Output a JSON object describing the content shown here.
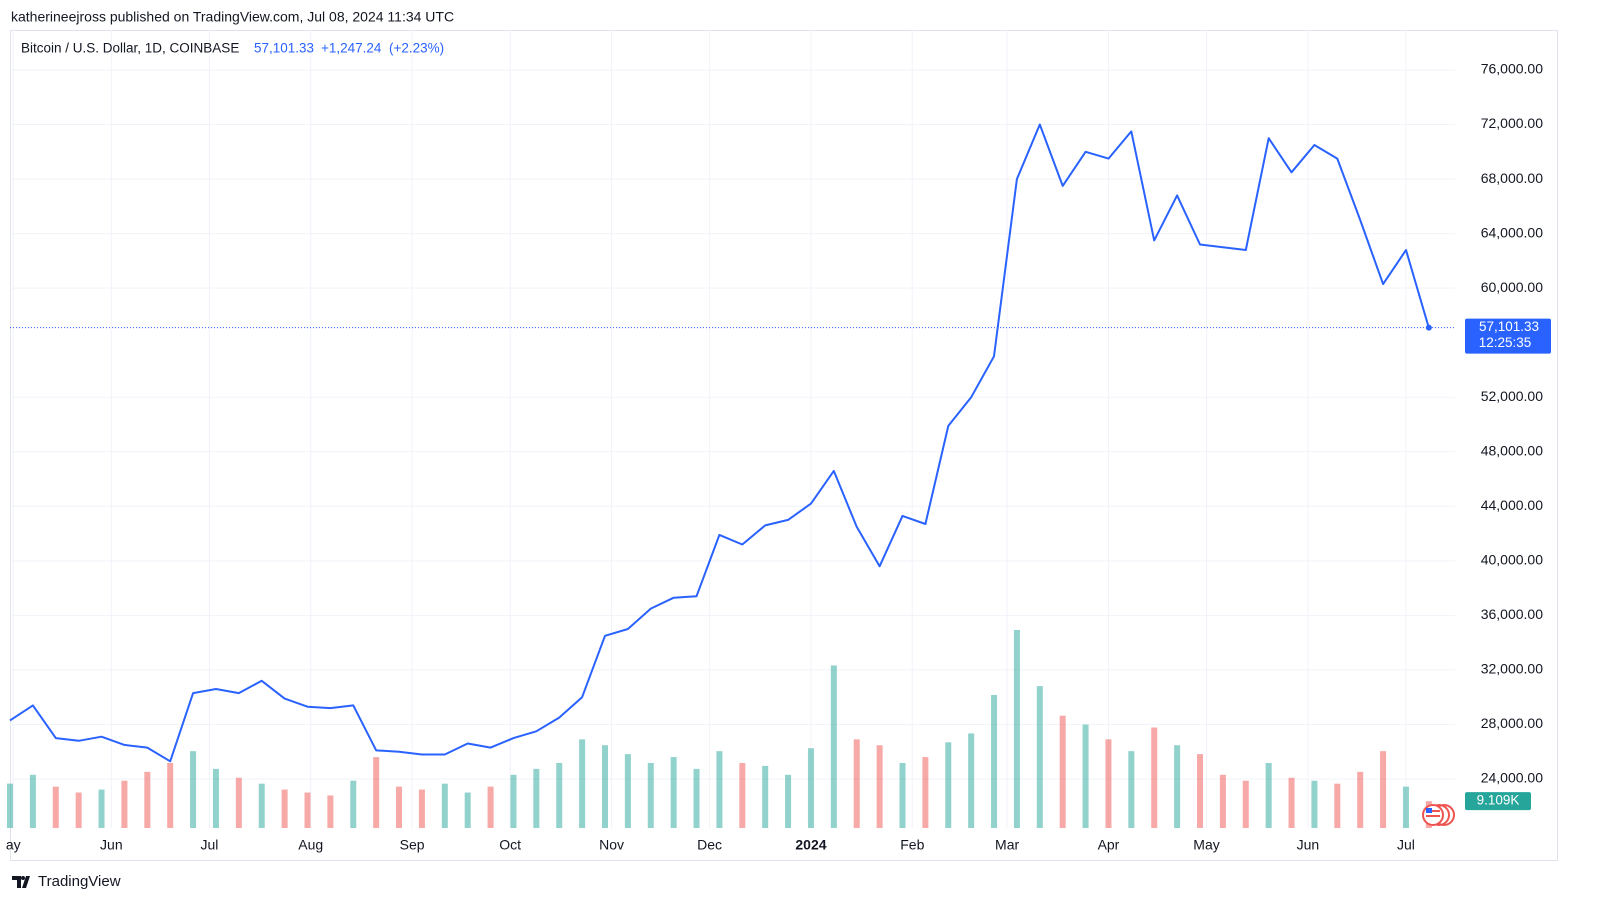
{
  "published": "katherineejross published on TradingView.com, Jul 08, 2024 11:34 UTC",
  "brand": "TradingView",
  "chart_data": {
    "type": "line",
    "title": "Bitcoin / U.S. Dollar, 1D, COINBASE",
    "last_price": {
      "value": 57101.33,
      "label": "57,101.33"
    },
    "change": {
      "value": 1247.24,
      "label": "+1,247.24"
    },
    "change_pct": {
      "value": 2.23,
      "label": "(+2.23%)"
    },
    "countdown": "12:25:35",
    "color": "#2962ff",
    "x": [
      0,
      7,
      14,
      21,
      28,
      35,
      42,
      49,
      56,
      63,
      70,
      77,
      84,
      91,
      98,
      105,
      112,
      119,
      126,
      133,
      140,
      147,
      154,
      161,
      168,
      175,
      182,
      189,
      196,
      203,
      210,
      217,
      224,
      231,
      238,
      245,
      252,
      259,
      266,
      273,
      280,
      287,
      294,
      301,
      308,
      315,
      322,
      329,
      336,
      343,
      350,
      357,
      364,
      371,
      378,
      385,
      392,
      399,
      406,
      413,
      420,
      427,
      434
    ],
    "values": [
      28300,
      29400,
      27000,
      26800,
      27100,
      26500,
      26300,
      25300,
      30300,
      30600,
      30300,
      31200,
      29900,
      29300,
      29200,
      29400,
      26100,
      26000,
      25800,
      25800,
      26600,
      26300,
      27000,
      27500,
      28500,
      30000,
      34500,
      35000,
      36500,
      37300,
      37400,
      41900,
      41200,
      42600,
      43000,
      44200,
      46600,
      42500,
      39600,
      43300,
      42700,
      49900,
      52000,
      55000,
      68000,
      72000,
      67500,
      70000,
      69500,
      71500,
      63500,
      66800,
      63200,
      63000,
      62800,
      71000,
      68500,
      70500,
      69500,
      65000,
      60300,
      62800,
      57101.33
    ],
    "volume": [
      15,
      18,
      14,
      12,
      13,
      16,
      19,
      22,
      26,
      20,
      17,
      15,
      13,
      12,
      11,
      16,
      24,
      14,
      13,
      15,
      12,
      14,
      18,
      20,
      22,
      30,
      28,
      25,
      22,
      24,
      20,
      26,
      22,
      21,
      18,
      27,
      55,
      30,
      28,
      22,
      24,
      29,
      32,
      45,
      67,
      48,
      38,
      35,
      30,
      26,
      34,
      28,
      25,
      18,
      16,
      22,
      17,
      16,
      15,
      19,
      26,
      14,
      9.109
    ],
    "last_volume": {
      "value": 9.109,
      "label": "9.109K"
    },
    "volume_ylim": [
      0,
      270
    ],
    "up_color": "#26a69a",
    "down_color": "#ef5350",
    "xlim": [
      0,
      442
    ],
    "xticks": [
      {
        "value": 1,
        "label": "ay"
      },
      {
        "value": 31,
        "label": "Jun"
      },
      {
        "value": 61,
        "label": "Jul"
      },
      {
        "value": 92,
        "label": "Aug"
      },
      {
        "value": 123,
        "label": "Sep"
      },
      {
        "value": 153,
        "label": "Oct"
      },
      {
        "value": 184,
        "label": "Nov"
      },
      {
        "value": 214,
        "label": "Dec"
      },
      {
        "value": 245,
        "label": "2024"
      },
      {
        "value": 276,
        "label": "Feb"
      },
      {
        "value": 305,
        "label": "Mar"
      },
      {
        "value": 336,
        "label": "Apr"
      },
      {
        "value": 366,
        "label": "May"
      },
      {
        "value": 397,
        "label": "Jun"
      },
      {
        "value": 427,
        "label": "Jul"
      }
    ],
    "ylim": [
      20406,
      78934
    ],
    "yticks": [
      {
        "value": 24000,
        "label": "24,000.00"
      },
      {
        "value": 28000,
        "label": "28,000.00"
      },
      {
        "value": 32000,
        "label": "32,000.00"
      },
      {
        "value": 36000,
        "label": "36,000.00"
      },
      {
        "value": 40000,
        "label": "40,000.00"
      },
      {
        "value": 44000,
        "label": "44,000.00"
      },
      {
        "value": 48000,
        "label": "48,000.00"
      },
      {
        "value": 52000,
        "label": "52,000.00"
      },
      {
        "value": 60000,
        "label": "60,000.00"
      },
      {
        "value": 64000,
        "label": "64,000.00"
      },
      {
        "value": 68000,
        "label": "68,000.00"
      },
      {
        "value": 72000,
        "label": "72,000.00"
      },
      {
        "value": 76000,
        "label": "76,000.00"
      }
    ],
    "grid": true
  }
}
